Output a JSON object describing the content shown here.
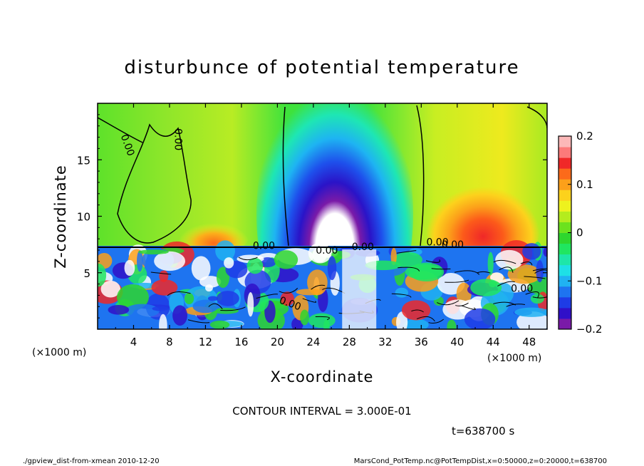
{
  "chart_data": {
    "type": "heatmap",
    "title": "disturbunce of potential temperature",
    "xlabel": "X-coordinate",
    "ylabel": "Z-coordinate",
    "x_unit": "(×1000 m)",
    "y_unit": "(×1000 m)",
    "xlim": [
      0,
      50
    ],
    "ylim": [
      0,
      20
    ],
    "x_ticks": [
      4,
      8,
      12,
      16,
      20,
      24,
      28,
      32,
      36,
      40,
      44,
      48
    ],
    "y_ticks": [
      5,
      10,
      15
    ],
    "colorbar": {
      "range": [
        -0.2,
        0.2
      ],
      "ticks": [
        0.2,
        0.1,
        0,
        -0.1,
        -0.2
      ],
      "tick_labels": [
        "0.2",
        "0.1",
        "0",
        "−0.1",
        "−0.2"
      ],
      "colors": [
        "#7a1aa8",
        "#3010c8",
        "#1e3ce6",
        "#1e74f0",
        "#20b2f2",
        "#1ee0e6",
        "#1ee6a8",
        "#20e660",
        "#2ed62e",
        "#6ce21e",
        "#b4ec1e",
        "#eef21e",
        "#fcd21c",
        "#fca01a",
        "#fc6a1a",
        "#f02828",
        "#fc7a7a",
        "#fcb8b8"
      ]
    },
    "contour_labels": [
      "0.00",
      "0.00",
      "0.00",
      "0.00",
      "0.00",
      "0.00",
      "0.00",
      "0.00",
      "0.00"
    ],
    "contour_interval": "CONTOUR INTERVAL = 3.000E-01",
    "time": "t=638700 s"
  },
  "footer": {
    "left": "./gpview_dist-from-xmean  2010-12-20",
    "right": "MarsCond_PotTemp.nc@PotTempDist,x=0:50000,z=0:20000,t=638700"
  },
  "colors": {
    "warm": "#f02828",
    "cold_core": "#ffffff",
    "background": "#20e660"
  }
}
